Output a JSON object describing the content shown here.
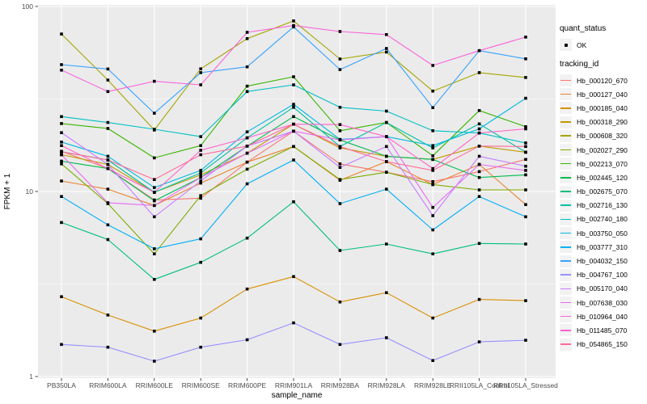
{
  "chart_data": {
    "type": "line",
    "title": "",
    "xlabel": "sample_name",
    "ylabel": "FPKM + 1",
    "y_scale": "log10",
    "ylim": [
      1,
      100
    ],
    "y_ticks": [
      1,
      10,
      100
    ],
    "y_minor_breaks": [
      3.162,
      31.62
    ],
    "grid": true,
    "legend_position": "right",
    "point_marker": "black-square",
    "categories": [
      "PB350LA",
      "RRIM600LA",
      "RRIM600LE",
      "RRIM600SE",
      "RRIM600PE",
      "RRIM901LA",
      "RRIM928BA",
      "RRIM928LA",
      "RRIM928LE",
      "RRII105LA_Control",
      "RRII105LA_Stressed"
    ],
    "series": [
      {
        "name": "Hb_000120_670",
        "color": "#F8766D",
        "values": [
          16.5,
          13.3,
          9.0,
          9.2,
          14.4,
          21.2,
          14.1,
          12.7,
          11.3,
          12.8,
          14.9
        ]
      },
      {
        "name": "Hb_000127_040",
        "color": "#EA8331",
        "values": [
          11.4,
          10.3,
          8.4,
          11.1,
          14.4,
          17.5,
          11.5,
          14.5,
          10.9,
          14.0,
          8.5
        ]
      },
      {
        "name": "Hb_000185_040",
        "color": "#D89000",
        "values": [
          2.7,
          2.15,
          1.76,
          2.07,
          2.97,
          3.47,
          2.53,
          2.84,
          2.07,
          2.61,
          2.57
        ]
      },
      {
        "name": "Hb_000318_290",
        "color": "#C09B00",
        "values": [
          15.8,
          14.0,
          9.9,
          12.3,
          16.1,
          23.1,
          17.2,
          15.5,
          14.9,
          17.6,
          16.3
        ]
      },
      {
        "name": "Hb_000608_320",
        "color": "#A3A500",
        "values": [
          71.0,
          40.0,
          21.5,
          46.0,
          67.0,
          83.5,
          52.0,
          56.7,
          34.9,
          43.9,
          41.3
        ]
      },
      {
        "name": "Hb_002027_290",
        "color": "#7CAE00",
        "values": [
          14.1,
          8.6,
          4.6,
          9.5,
          13.2,
          17.5,
          11.6,
          12.7,
          10.9,
          10.2,
          10.2
        ]
      },
      {
        "name": "Hb_002213_070",
        "color": "#39B600",
        "values": [
          23.3,
          21.9,
          15.2,
          17.7,
          37.1,
          41.7,
          21.3,
          23.6,
          15.6,
          27.4,
          22.4
        ]
      },
      {
        "name": "Hb_002445_120",
        "color": "#00BB4E",
        "values": [
          14.6,
          13.3,
          8.9,
          11.9,
          17.6,
          25.4,
          19.0,
          15.5,
          14.9,
          11.9,
          12.3
        ]
      },
      {
        "name": "Hb_002675_070",
        "color": "#00BF7D",
        "values": [
          6.8,
          5.5,
          3.35,
          4.14,
          5.6,
          8.8,
          4.8,
          5.2,
          4.6,
          5.24,
          5.2
        ]
      },
      {
        "name": "Hb_002716_130",
        "color": "#00C1A3",
        "values": [
          16.4,
          14.8,
          9.9,
          12.6,
          19.5,
          28.5,
          17.5,
          23.6,
          17.2,
          23.2,
          16.3
        ]
      },
      {
        "name": "Hb_002740_180",
        "color": "#00BFC4",
        "values": [
          25.4,
          23.6,
          21.7,
          19.8,
          34.7,
          37.7,
          28.5,
          27.2,
          21.3,
          20.7,
          18.3
        ]
      },
      {
        "name": "Hb_003750_050",
        "color": "#00BAE0",
        "values": [
          18.5,
          15.5,
          10.5,
          13.0,
          21.0,
          29.6,
          19.1,
          19.8,
          17.7,
          21.8,
          31.9
        ]
      },
      {
        "name": "Hb_003777_310",
        "color": "#00B0F6",
        "values": [
          9.4,
          6.6,
          4.9,
          5.55,
          11.0,
          14.8,
          8.6,
          10.3,
          6.2,
          9.4,
          7.3
        ]
      },
      {
        "name": "Hb_004032_150",
        "color": "#35A2FF",
        "values": [
          48.5,
          45.9,
          26.5,
          43.9,
          47.2,
          77.5,
          45.6,
          59.3,
          28.4,
          57.7,
          52.1
        ]
      },
      {
        "name": "Hb_004767_100",
        "color": "#9590FF",
        "values": [
          1.49,
          1.44,
          1.21,
          1.44,
          1.58,
          1.95,
          1.49,
          1.62,
          1.22,
          1.54,
          1.57
        ]
      },
      {
        "name": "Hb_005170_040",
        "color": "#C77CFF",
        "values": [
          20.8,
          14.0,
          7.3,
          11.4,
          17.6,
          21.2,
          13.5,
          17.5,
          7.4,
          15.5,
          13.7
        ]
      },
      {
        "name": "Hb_007638_030",
        "color": "#E76BF3",
        "values": [
          15.8,
          8.7,
          8.4,
          11.9,
          16.1,
          21.2,
          19.0,
          19.8,
          8.2,
          14.0,
          13.0
        ]
      },
      {
        "name": "Hb_010964_040",
        "color": "#FA62DB",
        "values": [
          45.3,
          34.7,
          39.4,
          37.7,
          72.5,
          78.9,
          73.2,
          70.5,
          48.0,
          57.7,
          68.3
        ]
      },
      {
        "name": "Hb_011485_070",
        "color": "#FF61CC",
        "values": [
          17.7,
          13.3,
          9.9,
          16.7,
          19.5,
          23.1,
          23.0,
          19.8,
          13.3,
          20.7,
          21.8
        ]
      },
      {
        "name": "Hb_054865_150",
        "color": "#FF6A98",
        "values": [
          16.4,
          14.8,
          11.6,
          15.8,
          17.6,
          23.1,
          17.5,
          14.5,
          13.0,
          17.6,
          17.5
        ]
      }
    ]
  },
  "axes": {
    "x_title": "sample_name",
    "y_title": "FPKM + 1"
  },
  "legend": {
    "quant_status_title": "quant_status",
    "quant_ok_label": "OK",
    "tracking_title": "tracking_id"
  },
  "colors": {
    "panel_bg": "#EBEBEB",
    "grid": "#FFFFFF",
    "tick_text": "#4D4D4D",
    "axis_title_text": "#000000",
    "point": "#000000",
    "legend_key_bg": "#F2F2F2",
    "tick_mark": "#333333"
  }
}
